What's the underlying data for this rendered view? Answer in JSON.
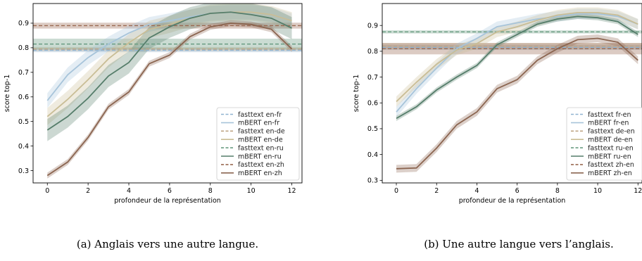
{
  "chart_data": [
    {
      "type": "line",
      "caption": "(a) Anglais vers une autre langue.",
      "xlabel": "profondeur de la représentation",
      "ylabel": "score top-1",
      "xlim": [
        -0.7,
        12.5
      ],
      "ylim": [
        0.25,
        0.98
      ],
      "xticks": [
        0,
        2,
        4,
        6,
        8,
        10,
        12
      ],
      "yticks": [
        0.3,
        0.4,
        0.5,
        0.6,
        0.7,
        0.8,
        0.9
      ],
      "x": [
        0,
        1,
        2,
        3,
        4,
        5,
        6,
        7,
        8,
        9,
        10,
        11,
        12
      ],
      "legend_position": "lower-right",
      "baselines": [
        {
          "name": "fasttext en-fr",
          "color": "#8fb3d0",
          "value": 0.79,
          "band": 0.008
        },
        {
          "name": "fasttext en-de",
          "color": "#bfa584",
          "value": 0.795,
          "band": 0.008
        },
        {
          "name": "fasttext en-ru",
          "color": "#6a9c82",
          "value": 0.815,
          "band": 0.022
        },
        {
          "name": "fasttext en-zh",
          "color": "#9a6a52",
          "value": 0.89,
          "band": 0.012
        }
      ],
      "series": [
        {
          "name": "mBERT en-fr",
          "color": "#a7c4da",
          "values": [
            0.585,
            0.69,
            0.76,
            0.815,
            0.86,
            0.895,
            0.91,
            0.925,
            0.94,
            0.945,
            0.945,
            0.935,
            0.91
          ],
          "band": 0.03
        },
        {
          "name": "mBERT en-de",
          "color": "#c9bd95",
          "values": [
            0.52,
            0.59,
            0.67,
            0.755,
            0.82,
            0.875,
            0.895,
            0.92,
            0.94,
            0.945,
            0.945,
            0.935,
            0.91
          ],
          "band": 0.035
        },
        {
          "name": "mBERT en-ru",
          "color": "#557d6a",
          "values": [
            0.465,
            0.52,
            0.595,
            0.685,
            0.74,
            0.84,
            0.885,
            0.92,
            0.94,
            0.945,
            0.935,
            0.92,
            0.88
          ],
          "band": 0.045
        },
        {
          "name": "mBERT en-zh",
          "color": "#8b6550",
          "values": [
            0.28,
            0.335,
            0.435,
            0.56,
            0.62,
            0.735,
            0.77,
            0.845,
            0.885,
            0.9,
            0.895,
            0.875,
            0.795
          ],
          "band": 0.012
        }
      ]
    },
    {
      "type": "line",
      "caption": "(b) Une autre langue vers l’anglais.",
      "xlabel": "profondeur de la représentation",
      "ylabel": "score top-1",
      "xlim": [
        -0.7,
        12.2
      ],
      "ylim": [
        0.29,
        0.985
      ],
      "xticks": [
        0,
        2,
        4,
        6,
        8,
        10,
        12
      ],
      "yticks": [
        0.3,
        0.4,
        0.5,
        0.6,
        0.7,
        0.8,
        0.9
      ],
      "x": [
        0,
        1,
        2,
        3,
        4,
        5,
        6,
        7,
        8,
        9,
        10,
        11,
        12
      ],
      "legend_position": "lower-right",
      "baselines": [
        {
          "name": "fasttext fr-en",
          "color": "#8fb3d0",
          "value": 0.815,
          "band": 0.01
        },
        {
          "name": "fasttext de-en",
          "color": "#bfa584",
          "value": 0.82,
          "band": 0.012
        },
        {
          "name": "fasttext ru-en",
          "color": "#6a9c82",
          "value": 0.875,
          "band": 0.006
        },
        {
          "name": "fasttext zh-en",
          "color": "#9a6a52",
          "value": 0.81,
          "band": 0.022
        }
      ],
      "series": [
        {
          "name": "mBERT fr-en",
          "color": "#a7c4da",
          "values": [
            0.565,
            0.655,
            0.735,
            0.81,
            0.85,
            0.895,
            0.91,
            0.925,
            0.935,
            0.945,
            0.945,
            0.935,
            0.905
          ],
          "band": 0.02
        },
        {
          "name": "mBERT de-en",
          "color": "#c9bd95",
          "values": [
            0.605,
            0.68,
            0.75,
            0.805,
            0.83,
            0.875,
            0.895,
            0.92,
            0.94,
            0.95,
            0.95,
            0.94,
            0.905
          ],
          "band": 0.02
        },
        {
          "name": "mBERT ru-en",
          "color": "#557d6a",
          "values": [
            0.54,
            0.585,
            0.65,
            0.7,
            0.745,
            0.825,
            0.865,
            0.905,
            0.925,
            0.935,
            0.93,
            0.915,
            0.865
          ],
          "band": 0.01
        },
        {
          "name": "mBERT zh-en",
          "color": "#8b6550",
          "values": [
            0.345,
            0.348,
            0.425,
            0.515,
            0.565,
            0.655,
            0.69,
            0.765,
            0.81,
            0.845,
            0.85,
            0.835,
            0.765
          ],
          "band": 0.015
        }
      ]
    }
  ]
}
